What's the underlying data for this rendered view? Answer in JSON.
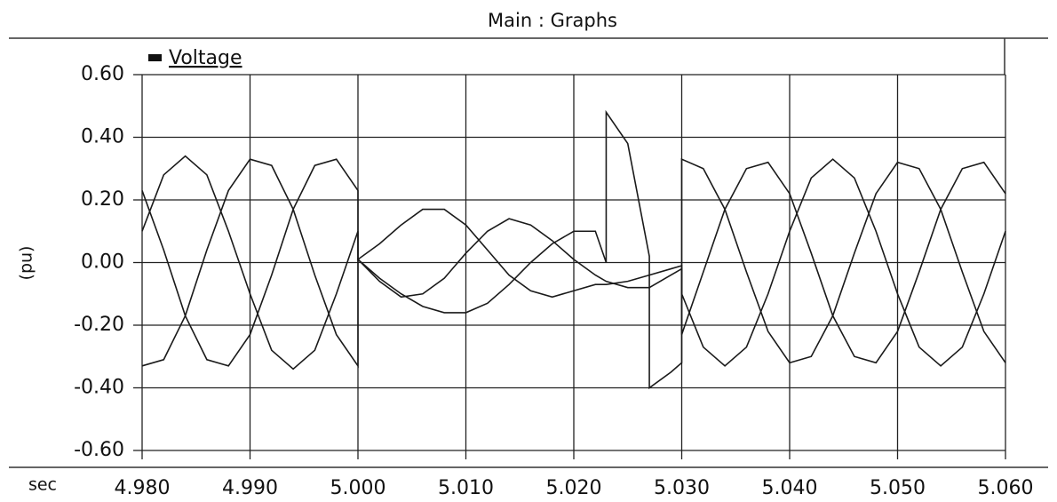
{
  "chart_data": {
    "type": "line",
    "title": "Main : Graphs",
    "legend_label": "Voltage",
    "ylabel": "(pu)",
    "xlabel": "sec",
    "x": [
      4.98,
      4.982,
      4.984,
      4.986,
      4.988,
      4.99,
      4.992,
      4.994,
      4.996,
      4.998,
      5.0,
      5.0,
      5.002,
      5.004,
      5.006,
      5.008,
      5.01,
      5.012,
      5.014,
      5.016,
      5.018,
      5.02,
      5.022,
      5.023,
      5.023,
      5.025,
      5.027,
      5.027,
      5.029,
      5.03,
      5.03,
      5.032,
      5.034,
      5.036,
      5.038,
      5.04,
      5.042,
      5.044,
      5.046,
      5.048,
      5.05,
      5.052,
      5.054,
      5.056,
      5.058,
      5.06
    ],
    "series": [
      {
        "color": "#1a1a1a",
        "values": [
          0.1,
          0.28,
          0.34,
          0.28,
          0.1,
          -0.1,
          -0.28,
          -0.34,
          -0.28,
          -0.1,
          0.1,
          0.01,
          0.06,
          0.12,
          0.17,
          0.17,
          0.12,
          0.04,
          -0.04,
          -0.09,
          -0.11,
          -0.09,
          -0.07,
          -0.07,
          -0.07,
          -0.06,
          -0.04,
          -0.04,
          -0.02,
          -0.01,
          -0.1,
          -0.27,
          -0.33,
          -0.27,
          -0.1,
          0.1,
          0.27,
          0.33,
          0.27,
          0.1,
          -0.1,
          -0.27,
          -0.33,
          -0.27,
          -0.1,
          0.1
        ]
      },
      {
        "color": "#1a1a1a",
        "values": [
          -0.33,
          -0.31,
          -0.17,
          0.04,
          0.23,
          0.33,
          0.31,
          0.17,
          -0.04,
          -0.23,
          -0.33,
          0.01,
          -0.05,
          -0.1,
          -0.14,
          -0.16,
          -0.16,
          -0.13,
          -0.07,
          0.0,
          0.06,
          0.1,
          0.1,
          0.0,
          0.48,
          0.38,
          0.02,
          -0.4,
          -0.35,
          -0.32,
          0.33,
          0.3,
          0.17,
          -0.03,
          -0.22,
          -0.32,
          -0.3,
          -0.17,
          0.03,
          0.22,
          0.32,
          0.3,
          0.17,
          -0.03,
          -0.22,
          -0.32
        ]
      },
      {
        "color": "#1a1a1a",
        "values": [
          0.23,
          0.04,
          -0.17,
          -0.31,
          -0.33,
          -0.23,
          -0.04,
          0.17,
          0.31,
          0.33,
          0.23,
          0.01,
          -0.06,
          -0.11,
          -0.1,
          -0.05,
          0.03,
          0.1,
          0.14,
          0.12,
          0.07,
          0.01,
          -0.04,
          -0.06,
          -0.06,
          -0.08,
          -0.08,
          -0.08,
          -0.04,
          -0.02,
          -0.23,
          -0.03,
          0.17,
          0.3,
          0.32,
          0.22,
          0.03,
          -0.17,
          -0.3,
          -0.32,
          -0.22,
          -0.03,
          0.17,
          0.3,
          0.32,
          0.22
        ]
      }
    ],
    "xlim": [
      4.98,
      5.06
    ],
    "xticks": [
      {
        "value": 4.98,
        "label": "4.980"
      },
      {
        "value": 4.99,
        "label": "4.990"
      },
      {
        "value": 5.0,
        "label": "5.000"
      },
      {
        "value": 5.01,
        "label": "5.010"
      },
      {
        "value": 5.02,
        "label": "5.020"
      },
      {
        "value": 5.03,
        "label": "5.030"
      },
      {
        "value": 5.04,
        "label": "5.040"
      },
      {
        "value": 5.05,
        "label": "5.050"
      },
      {
        "value": 5.06,
        "label": "5.060"
      }
    ],
    "ylim": [
      -0.6,
      0.6
    ],
    "yticks": [
      {
        "value": 0.6,
        "label": "0.60"
      },
      {
        "value": 0.4,
        "label": "0.40"
      },
      {
        "value": 0.2,
        "label": "0.20"
      },
      {
        "value": 0,
        "label": "0.00"
      },
      {
        "value": -0.2,
        "label": "-0.20"
      },
      {
        "value": -0.4,
        "label": "-0.40"
      },
      {
        "value": -0.6,
        "label": "-0.60"
      }
    ],
    "grid": true
  }
}
